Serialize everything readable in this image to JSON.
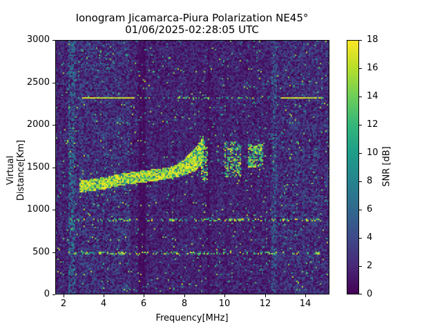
{
  "chart_data": {
    "type": "heatmap",
    "title": "Ionogram Jicamarca-Piura Polarization NE45°",
    "subtitle": "01/06/2025-02:28:05 UTC",
    "xlabel": "Frequency[MHz]",
    "ylabel": "Virtual Distance[Km]",
    "xlim": [
      1.6,
      15.2
    ],
    "ylim": [
      0,
      3000
    ],
    "xticks": [
      2,
      4,
      6,
      8,
      10,
      12,
      14
    ],
    "yticks": [
      0,
      500,
      1000,
      1500,
      2000,
      2500,
      3000
    ],
    "colorbar": {
      "label": "SNR [dB]",
      "range": [
        0,
        18
      ],
      "ticks": [
        0,
        2,
        4,
        6,
        8,
        10,
        12,
        14,
        16,
        18
      ],
      "colormap": "viridis"
    },
    "grid": false,
    "features": [
      {
        "name": "main_trace",
        "description": "Strong echo trace rising with frequency",
        "points": [
          [
            2.8,
            1230
          ],
          [
            4.0,
            1270
          ],
          [
            5.0,
            1320
          ],
          [
            6.0,
            1350
          ],
          [
            7.0,
            1380
          ],
          [
            8.0,
            1430
          ],
          [
            8.6,
            1500
          ],
          [
            9.0,
            1600
          ]
        ],
        "snr_db": 18
      },
      {
        "name": "spread_patch_1",
        "freq_range": [
          8.8,
          9.2
        ],
        "dist_range": [
          1350,
          1750
        ],
        "snr_db": 14
      },
      {
        "name": "spread_patch_2",
        "freq_range": [
          10.0,
          10.8
        ],
        "dist_range": [
          1380,
          1800
        ],
        "snr_db": 12
      },
      {
        "name": "spread_patch_3",
        "freq_range": [
          11.2,
          11.9
        ],
        "dist_range": [
          1500,
          1780
        ],
        "snr_db": 11
      },
      {
        "name": "horizontal_line_2320",
        "freq_range": [
          2.4,
          15.0
        ],
        "dist": 2320,
        "strong_segments": [
          [
            3.0,
            5.5
          ],
          [
            12.8,
            14.6
          ]
        ],
        "snr_db": 18
      },
      {
        "name": "horizontal_line_870",
        "freq_range": [
          2.2,
          14.8
        ],
        "dist": 870,
        "snr_db": 14
      },
      {
        "name": "horizontal_line_480",
        "freq_range": [
          2.2,
          14.8
        ],
        "dist": 480,
        "snr_db": 12
      }
    ],
    "background_snr_db": [
      0,
      4
    ]
  }
}
